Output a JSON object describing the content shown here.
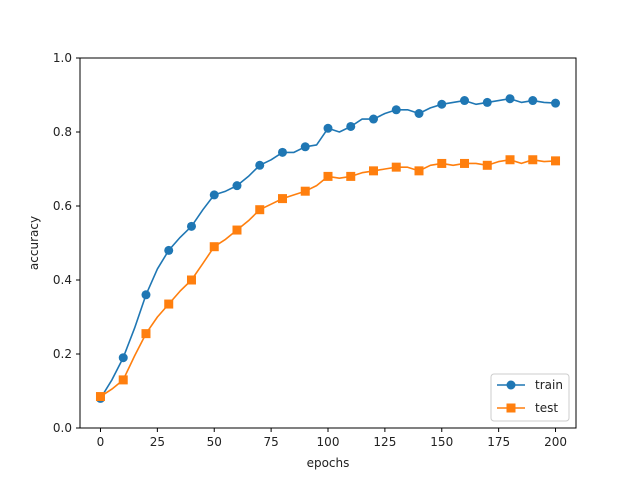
{
  "chart_data": {
    "type": "line",
    "title": "",
    "xlabel": "epochs",
    "ylabel": "accuracy",
    "xlim": [
      -9,
      209
    ],
    "ylim": [
      0,
      1.0
    ],
    "x_ticks": [
      0,
      25,
      50,
      75,
      100,
      125,
      150,
      175,
      200
    ],
    "y_ticks": [
      0.0,
      0.2,
      0.4,
      0.6,
      0.8,
      1.0
    ],
    "x_tick_labels": [
      "0",
      "25",
      "50",
      "75",
      "100",
      "125",
      "150",
      "175",
      "200"
    ],
    "y_tick_labels": [
      "0.0",
      "0.2",
      "0.4",
      "0.6",
      "0.8",
      "1.0"
    ],
    "grid": false,
    "legend_position": "lower-right",
    "marker_every": 10,
    "series": [
      {
        "name": "train",
        "color": "#1f77b4",
        "marker": "circle",
        "x": [
          0,
          5,
          10,
          15,
          20,
          25,
          30,
          35,
          40,
          45,
          50,
          55,
          60,
          65,
          70,
          75,
          80,
          85,
          90,
          95,
          100,
          105,
          110,
          115,
          120,
          125,
          130,
          135,
          140,
          145,
          150,
          155,
          160,
          165,
          170,
          175,
          180,
          185,
          190,
          195,
          200
        ],
        "values": [
          0.08,
          0.13,
          0.19,
          0.27,
          0.36,
          0.43,
          0.48,
          0.515,
          0.545,
          0.59,
          0.63,
          0.64,
          0.655,
          0.68,
          0.71,
          0.725,
          0.745,
          0.745,
          0.76,
          0.765,
          0.81,
          0.8,
          0.815,
          0.835,
          0.835,
          0.85,
          0.86,
          0.86,
          0.85,
          0.865,
          0.875,
          0.88,
          0.885,
          0.875,
          0.88,
          0.885,
          0.89,
          0.88,
          0.885,
          0.88,
          0.878
        ]
      },
      {
        "name": "test",
        "color": "#ff7f0e",
        "marker": "square",
        "x": [
          0,
          5,
          10,
          15,
          20,
          25,
          30,
          35,
          40,
          45,
          50,
          55,
          60,
          65,
          70,
          75,
          80,
          85,
          90,
          95,
          100,
          105,
          110,
          115,
          120,
          125,
          130,
          135,
          140,
          145,
          150,
          155,
          160,
          165,
          170,
          175,
          180,
          185,
          190,
          195,
          200
        ],
        "values": [
          0.085,
          0.105,
          0.13,
          0.195,
          0.255,
          0.3,
          0.335,
          0.37,
          0.4,
          0.445,
          0.49,
          0.51,
          0.535,
          0.56,
          0.59,
          0.605,
          0.62,
          0.63,
          0.64,
          0.655,
          0.68,
          0.675,
          0.68,
          0.69,
          0.695,
          0.7,
          0.705,
          0.705,
          0.695,
          0.71,
          0.715,
          0.71,
          0.715,
          0.715,
          0.71,
          0.72,
          0.725,
          0.715,
          0.725,
          0.72,
          0.722
        ]
      }
    ]
  }
}
